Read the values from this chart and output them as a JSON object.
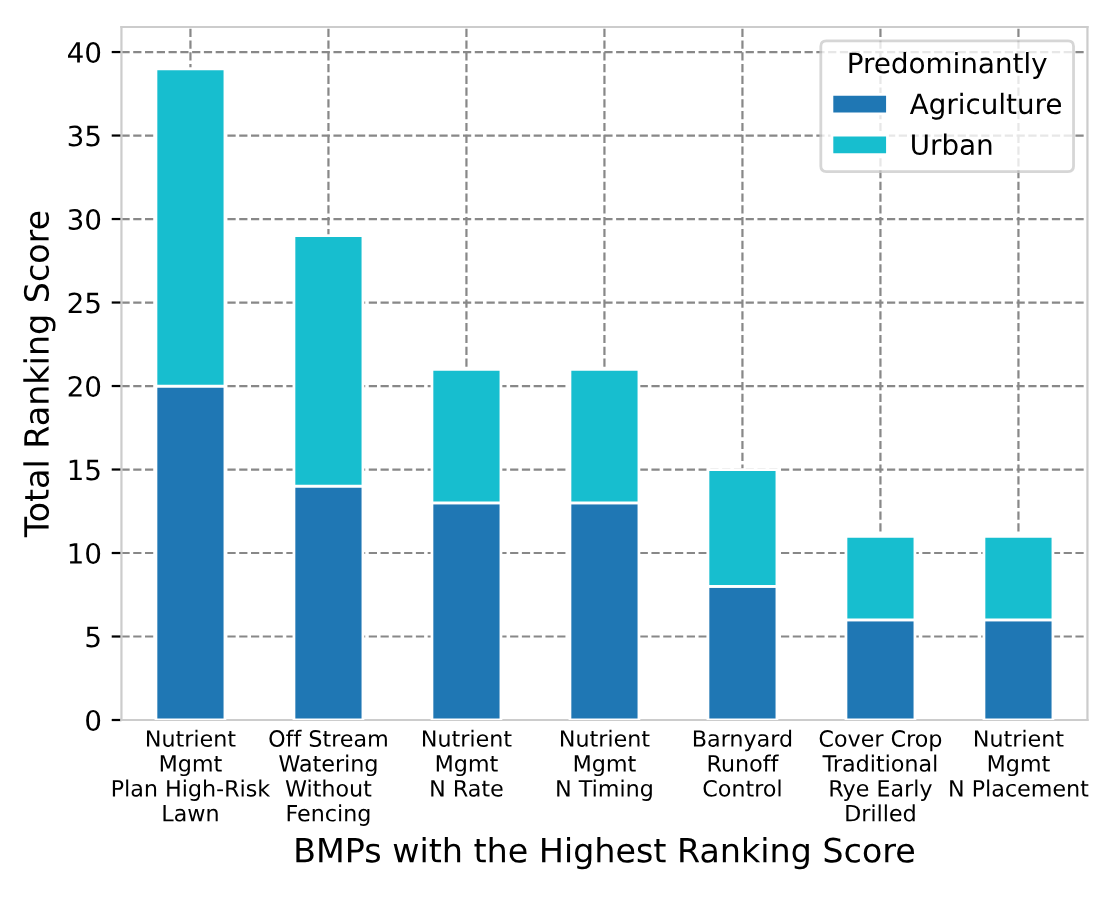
{
  "chart_data": {
    "type": "bar",
    "stacked": true,
    "xlabel": "BMPs with the Highest Ranking Score",
    "ylabel": "Total Ranking Score",
    "legend_title": "Predominantly",
    "legend": "top right",
    "grid": true,
    "categories": [
      "Nutrient\nMgmt\nPlan High-Risk\nLawn",
      "Off Stream\nWatering\nWithout\nFencing",
      "Nutrient\nMgmt\nN Rate",
      "Nutrient\nMgmt\nN Timing",
      "Barnyard\nRunoff\nControl",
      "Cover Crop\nTraditional\nRye Early\nDrilled",
      "Nutrient\nMgmt\nN Placement"
    ],
    "series": [
      {
        "name": "Agriculture",
        "color": "#1f77b4",
        "values": [
          20,
          14,
          13,
          13,
          8,
          6,
          6
        ]
      },
      {
        "name": "Urban",
        "color": "#17becf",
        "values": [
          19,
          15,
          8,
          8,
          7,
          5,
          5
        ]
      }
    ],
    "ylim": [
      0,
      41.5
    ],
    "yticks": [
      0,
      5,
      10,
      15,
      20,
      25,
      30,
      35,
      40
    ]
  }
}
